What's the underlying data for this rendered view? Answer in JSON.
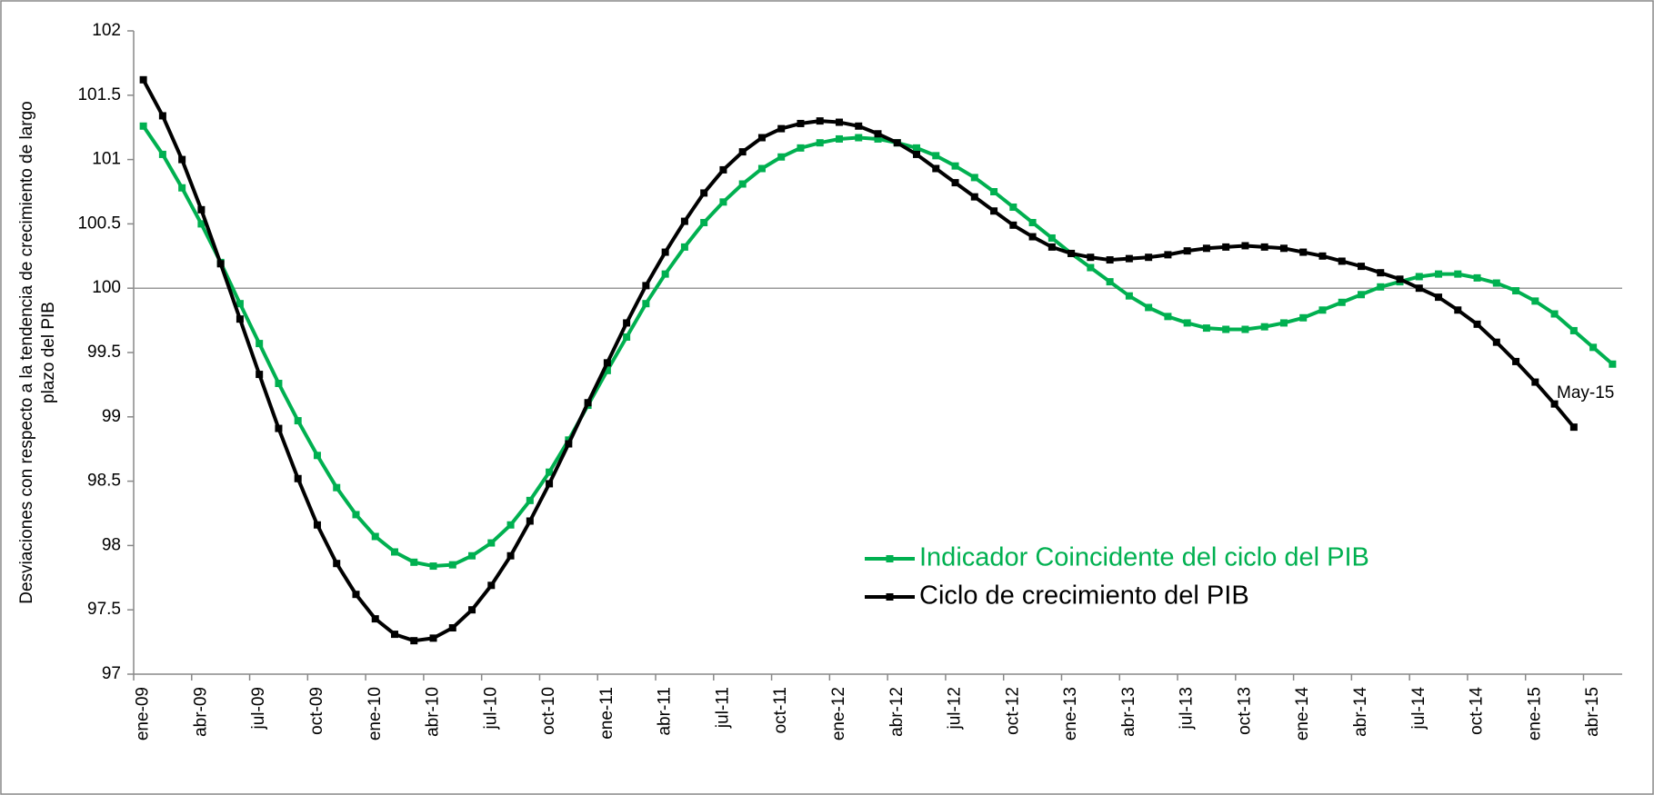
{
  "chart_data": {
    "type": "line",
    "y_label": [
      "Desviaciones con respecto a la tendencia de crecimiento de largo",
      "plazo del PIB"
    ],
    "categories": [
      "ene-09",
      null,
      null,
      "abr-09",
      null,
      null,
      "jul-09",
      null,
      null,
      "oct-09",
      null,
      null,
      "ene-10",
      null,
      null,
      "abr-10",
      null,
      null,
      "jul-10",
      null,
      null,
      "oct-10",
      null,
      null,
      "ene-11",
      null,
      null,
      "abr-11",
      null,
      null,
      "jul-11",
      null,
      null,
      "oct-11",
      null,
      null,
      "ene-12",
      null,
      null,
      "abr-12",
      null,
      null,
      "jul-12",
      null,
      null,
      "oct-12",
      null,
      null,
      "ene-13",
      null,
      null,
      "abr-13",
      null,
      null,
      "jul-13",
      null,
      null,
      "oct-13",
      null,
      null,
      "ene-14",
      null,
      null,
      "abr-14",
      null,
      null,
      "jul-14",
      null,
      null,
      "oct-14",
      null,
      null,
      "ene-15",
      null,
      null,
      "abr-15",
      null
    ],
    "series": [
      {
        "name": "Indicador Coincidente del ciclo del PIB",
        "color": "#00b050",
        "values": [
          101.26,
          101.04,
          100.78,
          100.5,
          100.2,
          99.88,
          99.57,
          99.26,
          98.97,
          98.7,
          98.45,
          98.24,
          98.07,
          97.95,
          97.87,
          97.84,
          97.85,
          97.92,
          98.02,
          98.16,
          98.35,
          98.57,
          98.82,
          99.09,
          99.36,
          99.62,
          99.88,
          100.11,
          100.32,
          100.51,
          100.67,
          100.81,
          100.93,
          101.02,
          101.09,
          101.13,
          101.16,
          101.17,
          101.16,
          101.13,
          101.09,
          101.03,
          100.95,
          100.86,
          100.75,
          100.63,
          100.51,
          100.39,
          100.27,
          100.16,
          100.05,
          99.94,
          99.85,
          99.78,
          99.73,
          99.69,
          99.68,
          99.68,
          99.7,
          99.73,
          99.77,
          99.83,
          99.89,
          99.95,
          100.01,
          100.05,
          100.09,
          100.11,
          100.11,
          100.08,
          100.04,
          99.98,
          99.9,
          99.8,
          99.67,
          99.54,
          99.41
        ]
      },
      {
        "name": "Ciclo de crecimiento del PIB",
        "color": "#000000",
        "values": [
          101.62,
          101.34,
          101.0,
          100.61,
          100.19,
          99.76,
          99.33,
          98.91,
          98.52,
          98.16,
          97.86,
          97.62,
          97.43,
          97.31,
          97.26,
          97.28,
          97.36,
          97.5,
          97.69,
          97.92,
          98.19,
          98.48,
          98.79,
          99.11,
          99.42,
          99.73,
          100.02,
          100.28,
          100.52,
          100.74,
          100.92,
          101.06,
          101.17,
          101.24,
          101.28,
          101.3,
          101.29,
          101.26,
          101.2,
          101.13,
          101.04,
          100.93,
          100.82,
          100.71,
          100.6,
          100.49,
          100.4,
          100.32,
          100.27,
          100.24,
          100.22,
          100.23,
          100.24,
          100.26,
          100.29,
          100.31,
          100.32,
          100.33,
          100.32,
          100.31,
          100.28,
          100.25,
          100.21,
          100.17,
          100.12,
          100.07,
          100.0,
          99.93,
          99.83,
          99.72,
          99.58,
          99.43,
          99.27,
          99.1,
          98.92,
          null,
          null
        ]
      }
    ],
    "annotation": "May-15",
    "ylim": [
      97,
      102
    ],
    "yticks": [
      97,
      97.5,
      98,
      98.5,
      99,
      99.5,
      100,
      100.5,
      101,
      101.5,
      102
    ],
    "reference_line": 100
  }
}
